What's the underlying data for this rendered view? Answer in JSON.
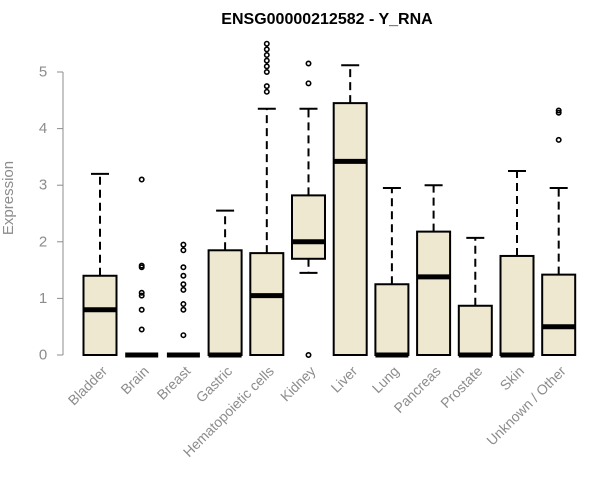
{
  "chart_data": {
    "type": "box",
    "title": "ENSG00000212582 - Y_RNA",
    "xlabel": "",
    "ylabel": "Expression",
    "ylim": [
      0,
      5.5
    ],
    "yticks": [
      0,
      1,
      2,
      3,
      4,
      5
    ],
    "box_fill": "#eee8d0",
    "median_color": "#000000",
    "categories": [
      "Bladder",
      "Brain",
      "Breast",
      "Gastric",
      "Hematopoietic cells",
      "Kidney",
      "Liver",
      "Lung",
      "Pancreas",
      "Prostate",
      "Skin",
      "Unknown / Other"
    ],
    "boxes": [
      {
        "category": "Bladder",
        "whisker_low": 0,
        "q1": 0,
        "median": 0.8,
        "q3": 1.4,
        "whisker_high": 3.2,
        "outliers": []
      },
      {
        "category": "Brain",
        "whisker_low": 0,
        "q1": 0,
        "median": 0,
        "q3": 0,
        "whisker_high": 0,
        "outliers": [
          0.45,
          0.8,
          1.05,
          1.1,
          1.55,
          1.58,
          3.1
        ]
      },
      {
        "category": "Breast",
        "whisker_low": 0,
        "q1": 0,
        "median": 0,
        "q3": 0,
        "whisker_high": 0,
        "outliers": [
          0.35,
          0.8,
          0.9,
          1.15,
          1.25,
          1.4,
          1.55,
          1.85,
          1.95
        ]
      },
      {
        "category": "Gastric",
        "whisker_low": 0,
        "q1": 0,
        "median": 0,
        "q3": 1.85,
        "whisker_high": 2.55,
        "outliers": []
      },
      {
        "category": "Hematopoietic cells",
        "whisker_low": 0,
        "q1": 0,
        "median": 1.05,
        "q3": 1.8,
        "whisker_high": 4.35,
        "outliers": [
          4.65,
          4.75,
          5.0,
          5.1,
          5.2,
          5.3,
          5.4,
          5.5
        ]
      },
      {
        "category": "Kidney",
        "whisker_low": 1.45,
        "q1": 1.7,
        "median": 2.0,
        "q3": 2.82,
        "whisker_high": 4.35,
        "outliers": [
          0,
          4.8,
          5.15
        ]
      },
      {
        "category": "Liver",
        "whisker_low": 0,
        "q1": 0,
        "median": 3.42,
        "q3": 4.45,
        "whisker_high": 5.12,
        "outliers": []
      },
      {
        "category": "Lung",
        "whisker_low": 0,
        "q1": 0,
        "median": 0,
        "q3": 1.25,
        "whisker_high": 2.95,
        "outliers": []
      },
      {
        "category": "Pancreas",
        "whisker_low": 0,
        "q1": 0,
        "median": 1.38,
        "q3": 2.18,
        "whisker_high": 3.0,
        "outliers": []
      },
      {
        "category": "Prostate",
        "whisker_low": 0,
        "q1": 0,
        "median": 0,
        "q3": 0.87,
        "whisker_high": 2.07,
        "outliers": []
      },
      {
        "category": "Skin",
        "whisker_low": 0,
        "q1": 0,
        "median": 0,
        "q3": 1.75,
        "whisker_high": 3.25,
        "outliers": []
      },
      {
        "category": "Unknown / Other",
        "whisker_low": 0,
        "q1": 0,
        "median": 0.5,
        "q3": 1.42,
        "whisker_high": 2.95,
        "outliers": [
          3.8,
          4.28,
          4.32
        ]
      }
    ]
  }
}
